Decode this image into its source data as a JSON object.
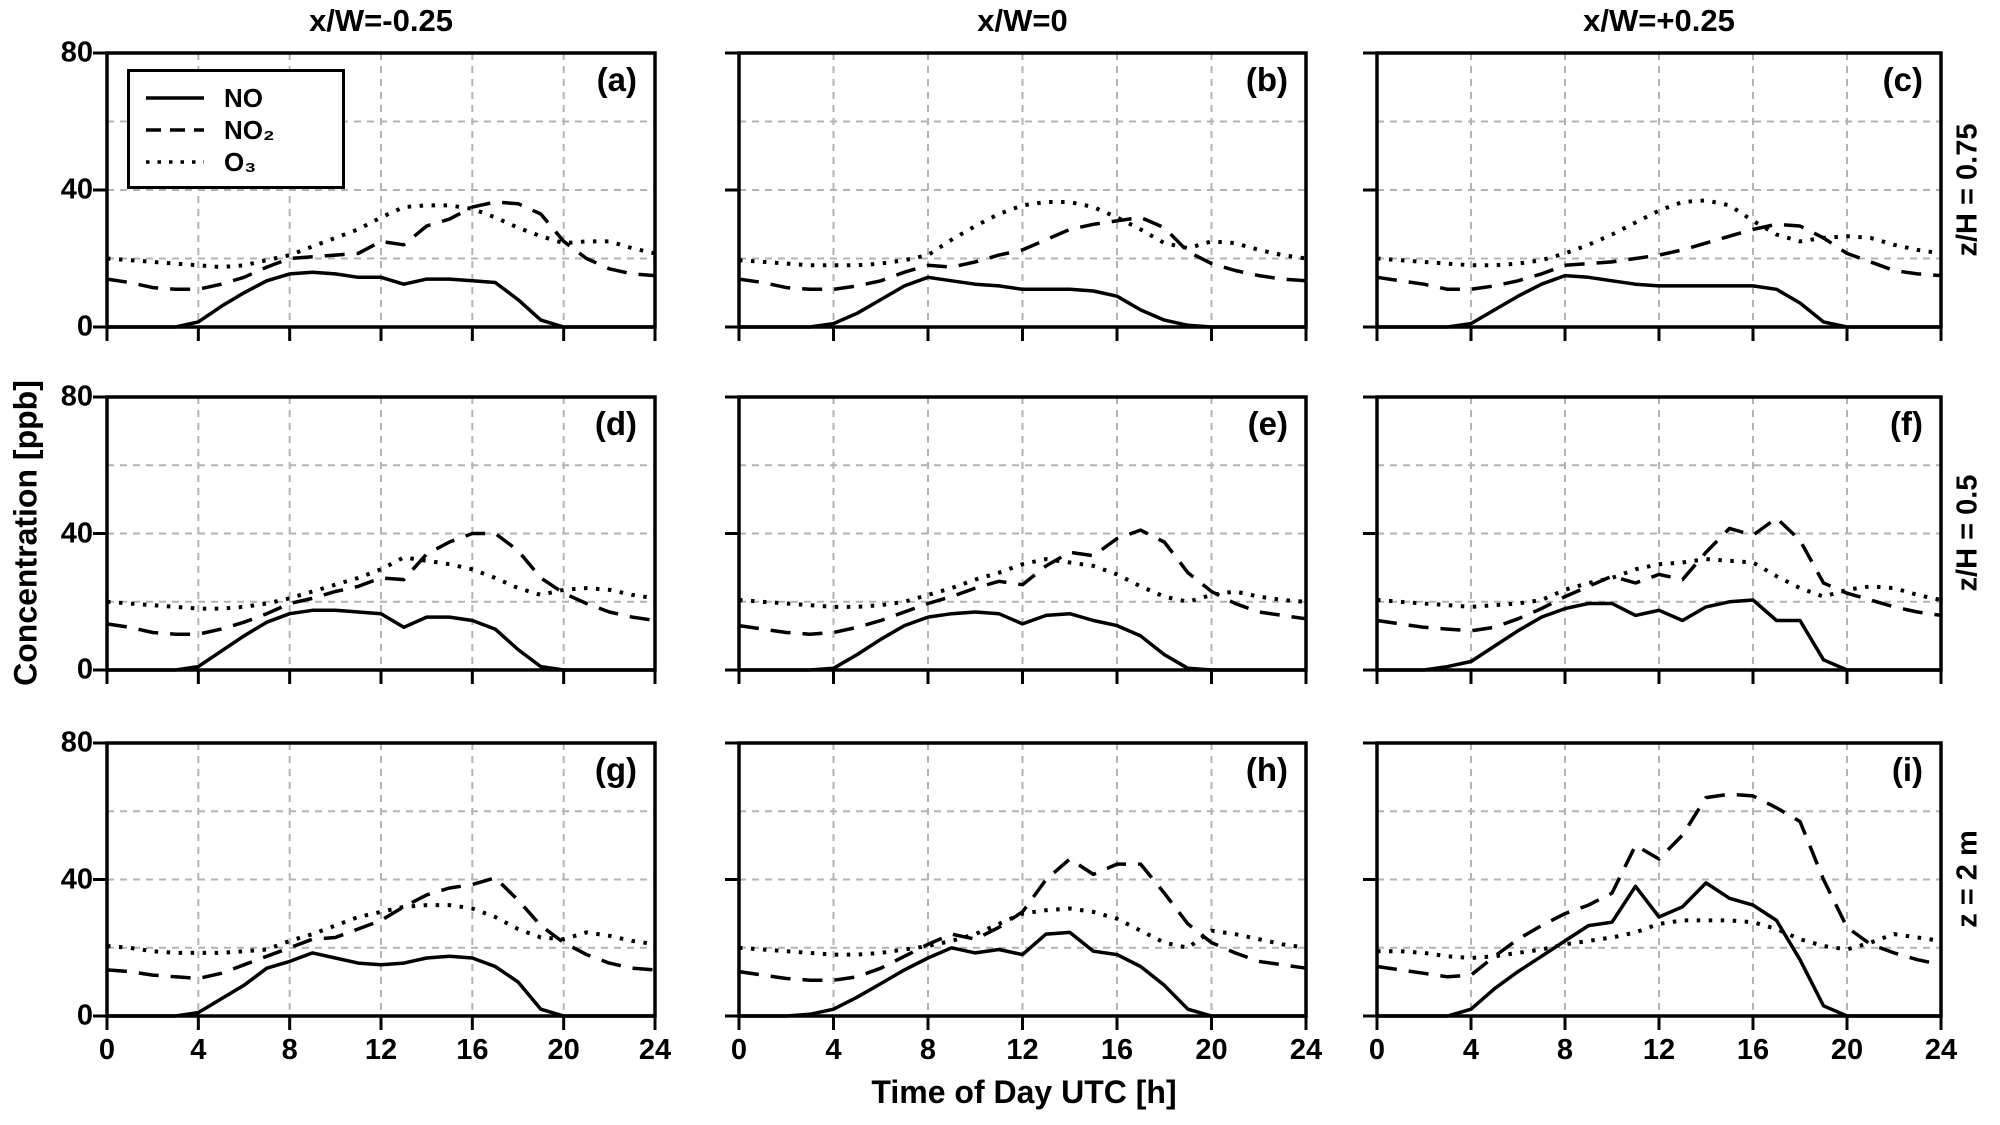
{
  "column_titles": [
    "x/W=-0.25",
    "x/W=0",
    "x/W=+0.25"
  ],
  "row_labels": [
    "z/H = 0.75",
    "z/H = 0.5",
    "z = 2 m"
  ],
  "axis": {
    "x_label": "Time of Day UTC [h]",
    "y_label": "Concentration [ppb]",
    "x_ticks": [
      0,
      4,
      8,
      12,
      16,
      20,
      24
    ],
    "y_ticks": [
      0,
      40,
      80
    ],
    "x_grid": [
      4,
      8,
      12,
      16,
      20
    ],
    "y_grid": [
      20,
      40,
      60
    ],
    "x_range": [
      0,
      24
    ],
    "y_range": [
      0,
      80
    ]
  },
  "legend": {
    "entries": [
      {
        "label": "NO",
        "style": "solid"
      },
      {
        "label": "NO₂",
        "style": "dashed"
      },
      {
        "label": "O₃",
        "style": "dotted"
      }
    ]
  },
  "colors": {
    "line": "#000000",
    "grid": "#b3b3b3",
    "background": "#ffffff"
  },
  "chart_data": {
    "type": "line",
    "x_hours": [
      0,
      1,
      2,
      3,
      4,
      5,
      6,
      7,
      8,
      9,
      10,
      11,
      12,
      13,
      14,
      15,
      16,
      17,
      18,
      19,
      20,
      21,
      22,
      23,
      24
    ],
    "draw_order": [
      "O3",
      "NO2",
      "NO"
    ],
    "series_styles": {
      "NO": {
        "dash": "",
        "width": 3.5
      },
      "NO2": {
        "dash": "20 12",
        "width": 3.5
      },
      "O3": {
        "dash": "3.5 8.5",
        "width": 4
      }
    },
    "panels": [
      {
        "label": "(a)",
        "column_title": "x/W=-0.25",
        "row_label": "z/H = 0.75",
        "series": {
          "NO": [
            0,
            0,
            0,
            0,
            1.5,
            6,
            10,
            13.5,
            15.5,
            16,
            15.5,
            14.5,
            14.5,
            12.5,
            14,
            14,
            13.5,
            13,
            8,
            2,
            0,
            0,
            0,
            0,
            0
          ],
          "NO2": [
            14,
            13,
            11.5,
            11,
            11,
            12.5,
            14.5,
            17.5,
            20,
            20.5,
            21,
            21.5,
            25,
            24,
            29.5,
            31.5,
            35,
            36.5,
            36,
            33,
            25,
            20,
            17,
            15.5,
            15
          ],
          "O3": [
            20,
            19.5,
            19,
            18.5,
            18,
            17.5,
            18,
            19.5,
            21,
            23.5,
            26,
            28.5,
            32,
            35,
            35.5,
            35.5,
            34.5,
            32,
            29,
            26.5,
            24.5,
            25,
            25,
            23,
            21.5
          ]
        }
      },
      {
        "label": "(b)",
        "column_title": "x/W=0",
        "row_label": "z/H = 0.75",
        "series": {
          "NO": [
            0,
            0,
            0,
            0,
            1,
            4,
            8,
            12,
            14.5,
            13.5,
            12.5,
            12,
            11,
            11,
            11,
            10.5,
            9,
            5,
            2,
            0.5,
            0,
            0,
            0,
            0,
            0
          ],
          "NO2": [
            14,
            13,
            11.5,
            11,
            11,
            12,
            13.5,
            16,
            18,
            17.5,
            19,
            21,
            22.5,
            25.5,
            28.5,
            30,
            31,
            32,
            29,
            22,
            18.5,
            16.5,
            15,
            14,
            13.5
          ],
          "O3": [
            19.5,
            19,
            18.5,
            18,
            18,
            18,
            18.5,
            19.5,
            21,
            25.5,
            29.5,
            33,
            35.5,
            36.5,
            36.5,
            35,
            32,
            28.5,
            24.5,
            23,
            25,
            24.5,
            22.5,
            21,
            20
          ]
        }
      },
      {
        "label": "(c)",
        "column_title": "x/W=+0.25",
        "row_label": "z/H = 0.75",
        "series": {
          "NO": [
            0,
            0,
            0,
            0,
            1,
            5,
            9,
            12.5,
            15,
            14.5,
            13.5,
            12.5,
            12,
            12,
            12,
            12,
            12,
            11,
            7,
            1.5,
            0,
            0,
            0,
            0,
            0
          ],
          "NO2": [
            14.5,
            13.5,
            12.5,
            11,
            11,
            12,
            13.5,
            15.5,
            18,
            18.5,
            19,
            20,
            21,
            22.5,
            24.5,
            26.5,
            28.5,
            30,
            29.5,
            26,
            21.5,
            19,
            16.5,
            15.5,
            15
          ],
          "O3": [
            20,
            19.5,
            19,
            18.5,
            18,
            18,
            18.5,
            19.5,
            21.5,
            24,
            27,
            30.5,
            34,
            36.5,
            37,
            35.5,
            31,
            27,
            25,
            26,
            26.5,
            26,
            24,
            22.5,
            21.5
          ]
        }
      },
      {
        "label": "(d)",
        "column_title": "x/W=-0.25",
        "row_label": "z/H = 0.5",
        "series": {
          "NO": [
            0,
            0,
            0,
            0,
            1,
            5.5,
            10,
            14,
            16.5,
            17.5,
            17.5,
            17,
            16.5,
            12.5,
            15.5,
            15.5,
            14.5,
            12,
            6,
            1,
            0,
            0,
            0,
            0,
            0
          ],
          "NO2": [
            13.5,
            12.5,
            11,
            10.5,
            10.5,
            12,
            14,
            16.5,
            19.5,
            21,
            23,
            24.5,
            27,
            26.5,
            34,
            37.5,
            40,
            40,
            35,
            27,
            22.5,
            19.5,
            17,
            15.5,
            14.5
          ],
          "O3": [
            20,
            19.5,
            19,
            18.5,
            18,
            18,
            18.5,
            19.5,
            21,
            23,
            25,
            27,
            29.5,
            33,
            32,
            31,
            29.5,
            27,
            24,
            22,
            23.5,
            24,
            23.5,
            22,
            21
          ]
        }
      },
      {
        "label": "(e)",
        "column_title": "x/W=0",
        "row_label": "z/H = 0.5",
        "series": {
          "NO": [
            0,
            0,
            0,
            0,
            0.5,
            4.5,
            9,
            13,
            15.5,
            16.5,
            17,
            16.5,
            13.5,
            16,
            16.5,
            14.5,
            13,
            10,
            4.5,
            0.5,
            0,
            0,
            0,
            0,
            0
          ],
          "NO2": [
            13,
            12,
            11,
            10.5,
            11,
            12.5,
            14.5,
            17,
            19.5,
            21.5,
            24,
            26,
            25,
            30.5,
            34.5,
            33.5,
            38.5,
            41,
            37.5,
            28.5,
            23,
            19.5,
            17,
            16,
            15
          ],
          "O3": [
            20.5,
            20,
            19.5,
            19,
            18.5,
            18.5,
            19,
            20,
            22,
            24,
            26.5,
            28.5,
            31,
            32.5,
            31.5,
            30.5,
            28,
            24.5,
            21.5,
            20,
            22,
            23,
            21.5,
            20.5,
            20
          ]
        }
      },
      {
        "label": "(f)",
        "column_title": "x/W=+0.25",
        "row_label": "z/H = 0.5",
        "series": {
          "NO": [
            0,
            0,
            0,
            1,
            2.5,
            7,
            11.5,
            15.5,
            18,
            19.5,
            19.5,
            16,
            17.5,
            14.5,
            18.5,
            20,
            20.5,
            14.5,
            14.5,
            3,
            0,
            0,
            0,
            0,
            0
          ],
          "NO2": [
            14.5,
            13.5,
            12.5,
            12,
            11.5,
            12.5,
            15,
            18,
            21.5,
            24.5,
            27.5,
            25.5,
            28,
            26.5,
            34.5,
            41.5,
            39.5,
            44.5,
            38,
            25.5,
            22.5,
            20.5,
            18.5,
            17,
            16
          ],
          "O3": [
            20.5,
            20,
            19.5,
            19,
            18.5,
            19,
            19.5,
            20.5,
            23.5,
            25.5,
            27,
            29.5,
            31,
            31.5,
            32.5,
            32,
            31.5,
            27.5,
            24,
            21.5,
            23.5,
            24.5,
            24,
            22,
            20.5
          ]
        }
      },
      {
        "label": "(g)",
        "column_title": "x/W=-0.25",
        "row_label": "z = 2 m",
        "series": {
          "NO": [
            0,
            0,
            0,
            0,
            1,
            5,
            9,
            14,
            16,
            18.5,
            17,
            15.5,
            15,
            15.5,
            17,
            17.5,
            17,
            14.5,
            10,
            2,
            0,
            0,
            0,
            0,
            0
          ],
          "NO2": [
            13.5,
            13,
            12,
            11.5,
            11,
            12.5,
            15,
            17.5,
            20,
            22.5,
            23,
            25.5,
            28,
            32,
            35.5,
            37.5,
            38.5,
            40.5,
            34,
            26.5,
            21.5,
            18,
            15.5,
            14,
            13.5
          ],
          "O3": [
            20.5,
            20,
            19,
            18.5,
            18.5,
            18.5,
            19,
            19.5,
            22,
            24,
            26.5,
            29,
            30.5,
            32,
            32.5,
            32.5,
            31.5,
            29,
            25.5,
            23,
            22.5,
            24.5,
            23.5,
            22,
            21
          ]
        }
      },
      {
        "label": "(h)",
        "column_title": "x/W=0",
        "row_label": "z = 2 m",
        "series": {
          "NO": [
            0,
            0,
            0,
            0.5,
            2,
            5.5,
            9.5,
            13.5,
            17,
            20,
            18.5,
            19.5,
            18,
            24,
            24.5,
            19,
            18,
            14.5,
            9,
            2,
            0,
            0,
            0,
            0,
            0
          ],
          "NO2": [
            13,
            12,
            11,
            10.5,
            10.5,
            11.5,
            14,
            17.5,
            21,
            24,
            22.5,
            26,
            30.5,
            40,
            46,
            41.5,
            44.5,
            44.5,
            36,
            27,
            21.5,
            18.5,
            16,
            15,
            14
          ],
          "O3": [
            20,
            19.5,
            19,
            18.5,
            18,
            18,
            18.5,
            19.5,
            20.5,
            22,
            24,
            27,
            30,
            31,
            31.5,
            30.5,
            28.5,
            25,
            21.5,
            20,
            25,
            24,
            22.5,
            21,
            20
          ]
        }
      },
      {
        "label": "(i)",
        "column_title": "x/W=+0.25",
        "row_label": "z = 2 m",
        "series": {
          "NO": [
            0,
            0,
            0,
            0,
            2,
            8,
            13,
            17.5,
            22,
            26.5,
            27.5,
            38,
            29,
            32,
            39,
            34.5,
            32.5,
            28,
            16.5,
            3,
            0,
            0,
            0,
            0,
            0
          ],
          "NO2": [
            14.5,
            13.5,
            12.5,
            11.5,
            12,
            17.5,
            22.5,
            26.5,
            30,
            32.5,
            36,
            50,
            46,
            53,
            64,
            65,
            64.5,
            61,
            57,
            40,
            26,
            21,
            18.5,
            16.5,
            15
          ],
          "O3": [
            19,
            19,
            18.5,
            17.5,
            17,
            17.5,
            18.5,
            19.5,
            21,
            22,
            23,
            24.5,
            27,
            28,
            28,
            28,
            27.5,
            25.5,
            22.5,
            20.5,
            19.5,
            21.5,
            24,
            23,
            22
          ]
        }
      }
    ]
  }
}
